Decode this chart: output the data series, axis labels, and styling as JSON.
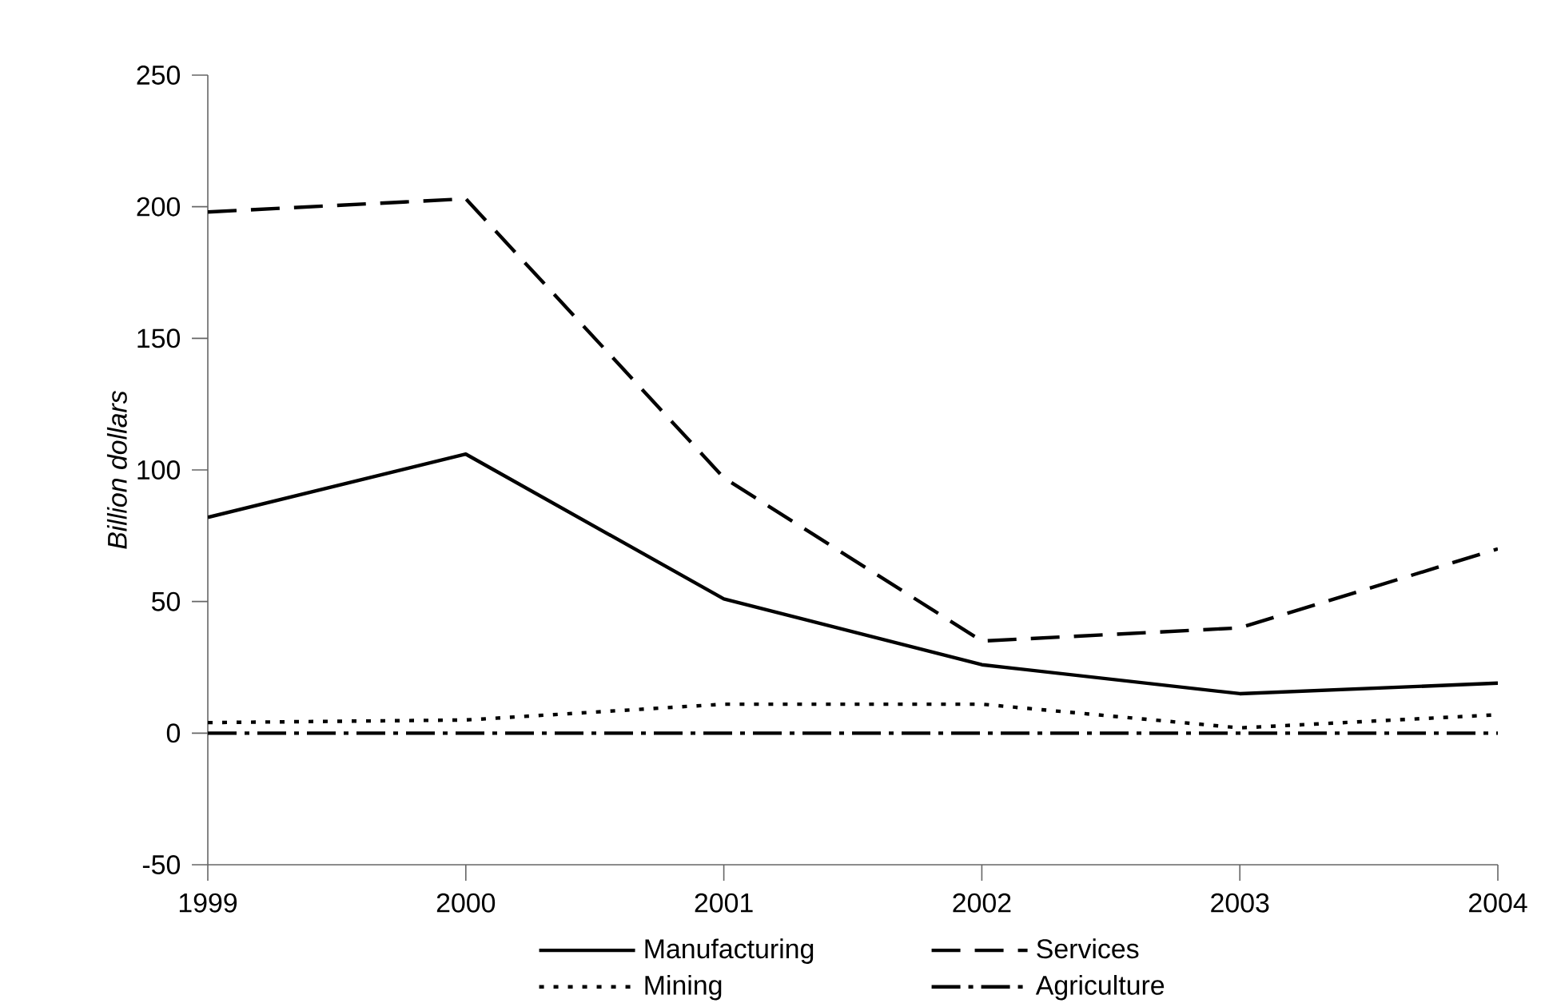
{
  "chart_data": {
    "type": "line",
    "ylabel": "Billion dollars",
    "x": [
      1999,
      2000,
      2001,
      2002,
      2003,
      2004
    ],
    "xlim": [
      1999,
      2004
    ],
    "xticks": [
      1999,
      2000,
      2001,
      2002,
      2003,
      2004
    ],
    "ylim": [
      -50,
      250
    ],
    "yticks": [
      -50,
      0,
      50,
      100,
      150,
      200,
      250
    ],
    "grid": false,
    "legend": "bottom",
    "marker": "none",
    "series": [
      {
        "name": "Manufacturing",
        "color": "#000000",
        "line_style": "solid",
        "values": [
          82,
          106,
          51,
          26,
          15,
          19
        ]
      },
      {
        "name": "Services",
        "color": "#000000",
        "line_style": "dashed",
        "values": [
          198,
          203,
          97,
          35,
          40,
          70
        ]
      },
      {
        "name": "Mining",
        "color": "#000000",
        "line_style": "dotted",
        "values": [
          4,
          5,
          11,
          11,
          2,
          7
        ]
      },
      {
        "name": "Agriculture",
        "color": "#000000",
        "line_style": "dashdot",
        "values": [
          0,
          0,
          0,
          0,
          0,
          0
        ]
      }
    ]
  }
}
